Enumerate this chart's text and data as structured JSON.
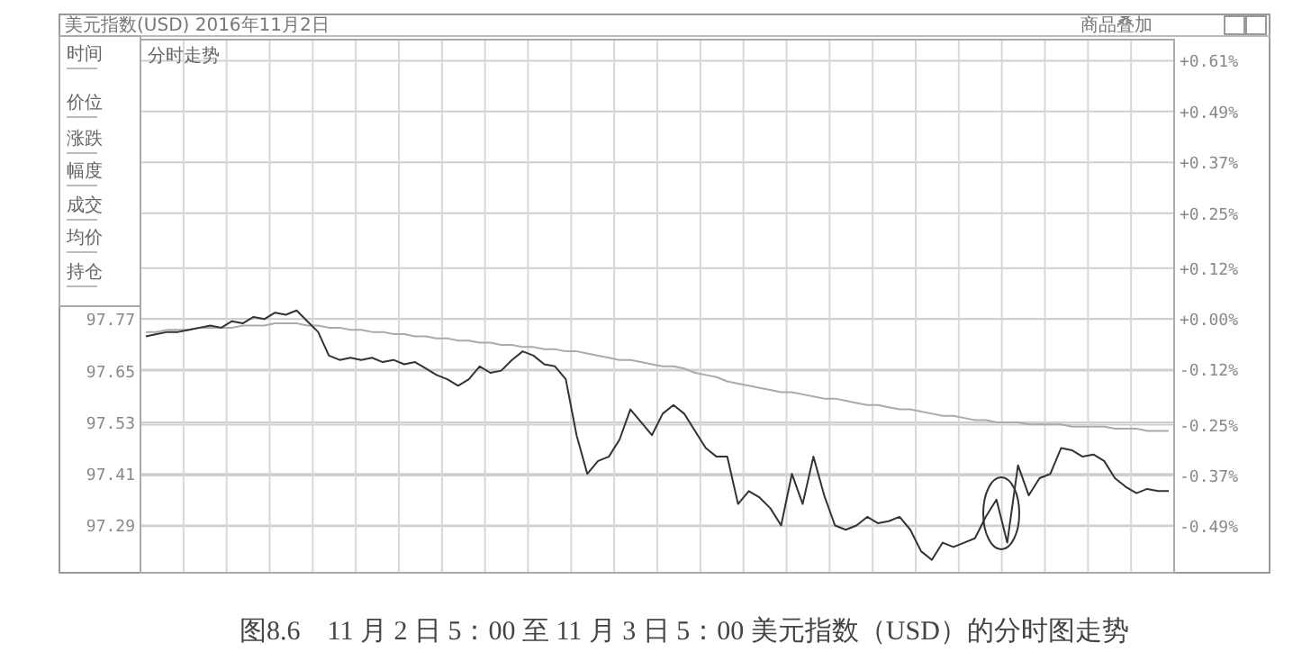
{
  "chart_data": {
    "type": "line",
    "title": "美元指数(USD) 2016年11月2日",
    "subtitle": "分时走势",
    "categories": [
      null,
      null,
      null,
      null,
      null,
      null,
      null,
      null,
      null,
      null,
      null,
      null,
      null,
      null,
      null,
      null,
      null,
      null,
      null,
      null,
      null,
      null,
      null,
      null,
      null,
      null,
      null,
      null,
      null,
      null,
      null,
      null,
      null,
      null,
      null,
      null,
      null,
      null,
      null,
      null,
      null,
      null,
      null,
      null,
      null,
      null,
      null,
      null,
      null,
      null,
      null,
      null,
      null,
      null,
      null,
      null,
      null,
      null,
      null,
      null,
      null,
      null,
      null,
      null,
      null,
      null,
      null,
      null,
      null,
      null,
      null,
      null,
      null,
      null,
      null,
      null,
      null,
      null,
      null,
      null,
      null,
      null,
      null,
      null,
      null,
      null,
      null,
      null,
      null,
      null,
      null,
      null,
      null,
      null,
      null,
      null
    ],
    "series": [
      {
        "color": "#333333",
        "values": [
          97.73,
          97.735,
          97.74,
          97.74,
          97.745,
          97.75,
          97.755,
          97.75,
          97.765,
          97.76,
          97.775,
          97.77,
          97.785,
          97.78,
          97.79,
          97.765,
          97.74,
          97.685,
          97.675,
          97.68,
          97.675,
          97.68,
          97.67,
          97.675,
          97.665,
          97.67,
          97.655,
          97.64,
          97.63,
          97.615,
          97.63,
          97.66,
          97.645,
          97.65,
          97.675,
          97.695,
          97.685,
          97.665,
          97.66,
          97.63,
          97.5,
          97.41,
          97.44,
          97.45,
          97.49,
          97.56,
          97.53,
          97.5,
          97.55,
          97.57,
          97.55,
          97.51,
          97.47,
          97.45,
          97.45,
          97.34,
          97.37,
          97.355,
          97.33,
          97.29,
          97.41,
          97.34,
          97.45,
          97.36,
          97.29,
          97.28,
          97.29,
          97.31,
          97.295,
          97.3,
          97.31,
          97.28,
          97.23,
          97.21,
          97.25,
          97.24,
          97.25,
          97.26,
          97.31,
          97.35,
          97.25,
          97.43,
          97.36,
          97.4,
          97.41,
          97.47,
          97.465,
          97.45,
          97.455,
          97.44,
          97.4,
          97.38,
          97.365,
          97.375,
          97.37,
          97.37
        ]
      },
      {
        "color": "#aaaaaa",
        "values": [
          97.74,
          97.74,
          97.745,
          97.745,
          97.745,
          97.75,
          97.75,
          97.75,
          97.75,
          97.755,
          97.755,
          97.755,
          97.76,
          97.76,
          97.76,
          97.755,
          97.755,
          97.75,
          97.75,
          97.745,
          97.745,
          97.74,
          97.74,
          97.735,
          97.735,
          97.73,
          97.73,
          97.725,
          97.725,
          97.72,
          97.72,
          97.715,
          97.715,
          97.71,
          97.71,
          97.705,
          97.705,
          97.7,
          97.7,
          97.695,
          97.695,
          97.69,
          97.685,
          97.68,
          97.675,
          97.675,
          97.67,
          97.665,
          97.66,
          97.66,
          97.655,
          97.645,
          97.64,
          97.635,
          97.625,
          97.62,
          97.615,
          97.61,
          97.605,
          97.6,
          97.6,
          97.595,
          97.59,
          97.585,
          97.585,
          97.58,
          97.575,
          97.57,
          97.57,
          97.565,
          97.56,
          97.56,
          97.555,
          97.55,
          97.545,
          97.545,
          97.54,
          97.535,
          97.535,
          97.53,
          97.53,
          97.53,
          97.525,
          97.525,
          97.525,
          97.525,
          97.52,
          97.52,
          97.52,
          97.52,
          97.515,
          97.515,
          97.515,
          97.51,
          97.51,
          97.51
        ]
      }
    ],
    "ylim": [
      97.18,
      98.42
    ],
    "yticks": [
      97.77,
      97.65,
      97.53,
      97.41,
      97.29
    ],
    "y2lim": [
      -0.6,
      0.66
    ],
    "y2ticks": [
      {
        "value": 0.61,
        "label": "+0.61%"
      },
      {
        "value": 0.49,
        "label": "+0.49%"
      },
      {
        "value": 0.37,
        "label": "+0.37%"
      },
      {
        "value": 0.25,
        "label": "+0.25%"
      },
      {
        "value": 0.12,
        "label": "+0.12%"
      },
      {
        "value": 0.0,
        "label": "+0.00%"
      },
      {
        "value": -0.12,
        "label": "-0.12%"
      },
      {
        "value": -0.25,
        "label": "-0.25%"
      },
      {
        "value": -0.37,
        "label": "-0.37%"
      },
      {
        "value": -0.49,
        "label": "-0.49%"
      }
    ],
    "grid": true,
    "annotations": [
      "时间",
      "价位",
      "涨跌",
      "幅度",
      "成交",
      "均价",
      "持仓",
      "商品叠加",
      "图8.6　11 月 2 日 5：00 至 11 月 3 日 5：00 美元指数（USD）的分时图走势"
    ]
  }
}
